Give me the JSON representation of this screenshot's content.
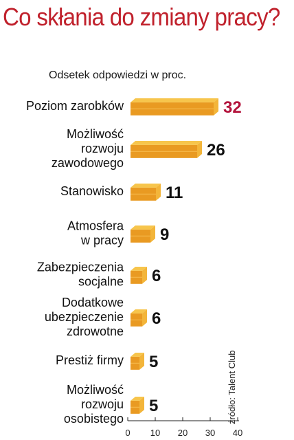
{
  "title": "Co skłania do zmiany pracy?",
  "subtitle": "Odsetek odpowiedzi w proc.",
  "source": "źródło: Talent Club",
  "colors": {
    "title": "#c0212c",
    "highlight_value": "#b3123b",
    "value": "#111111",
    "bar_front": "#e99a22",
    "bar_top": "#f7c54c",
    "bar_side": "#f3b53a"
  },
  "chart_data": {
    "type": "bar",
    "orientation": "horizontal",
    "title": "Co skłania do zmiany pracy?",
    "subtitle": "Odsetek odpowiedzi w proc.",
    "categories": [
      [
        "Poziom zarobków"
      ],
      [
        "Możliwość",
        "rozwoju",
        "zawodowego"
      ],
      [
        "Stanowisko"
      ],
      [
        "Atmosfera",
        "w pracy"
      ],
      [
        "Zabezpieczenia",
        "socjalne"
      ],
      [
        "Dodatkowe",
        "ubezpieczenie",
        "zdrowotne"
      ],
      [
        "Prestiż firmy"
      ],
      [
        "Możliwość",
        "rozwoju",
        "osobistego"
      ]
    ],
    "values": [
      32,
      26,
      11,
      9,
      6,
      6,
      5,
      5
    ],
    "highlight_index": 0,
    "xlim": [
      0,
      40
    ],
    "xticks": [
      0,
      10,
      20,
      30,
      40
    ],
    "grid": false,
    "style": "3d-bars"
  }
}
